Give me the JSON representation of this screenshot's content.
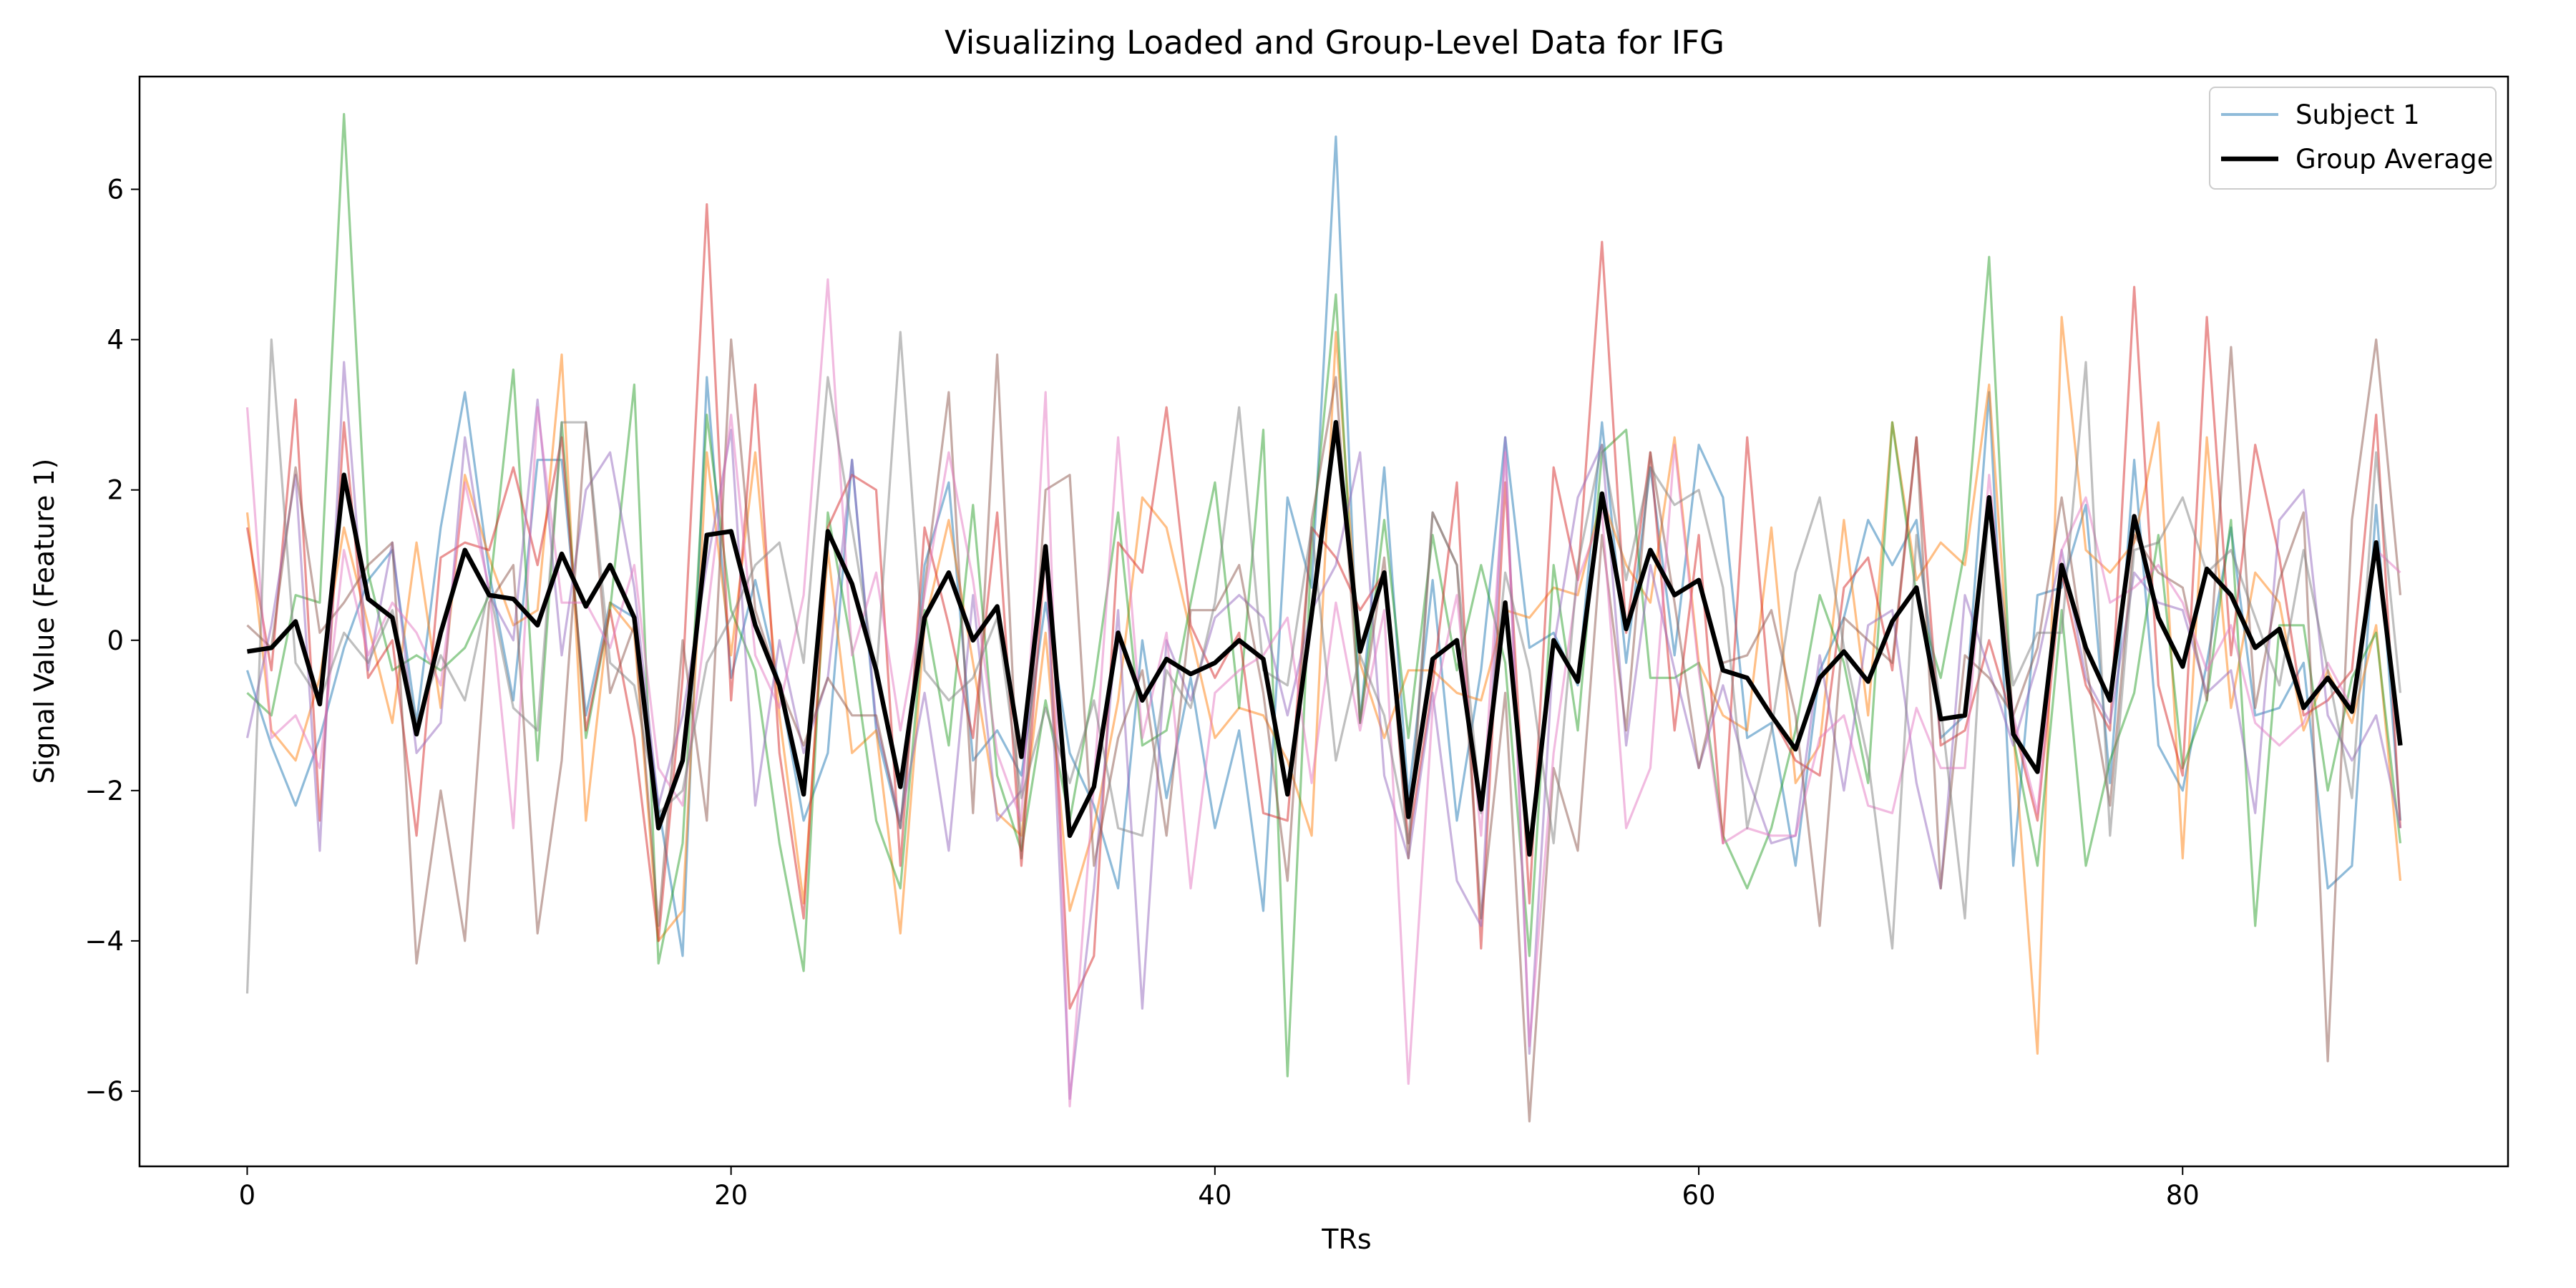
{
  "chart_data": {
    "type": "line",
    "title": "Visualizing Loaded and Group-Level Data for IFG",
    "xlabel": "TRs",
    "ylabel": "Signal Value (Feature 1)",
    "xlim": [
      -4.45,
      93.45
    ],
    "ylim": [
      -7.0,
      7.5
    ],
    "xticks": [
      0,
      20,
      40,
      60,
      80
    ],
    "yticks": [
      -6,
      -4,
      -2,
      0,
      2,
      4,
      6
    ],
    "xtick_labels": [
      "0",
      "20",
      "40",
      "60",
      "80"
    ],
    "ytick_labels": [
      "−6",
      "−4",
      "−2",
      "0",
      "2",
      "4",
      "6"
    ],
    "legend": {
      "placement": "top-right",
      "entries": [
        {
          "label": "Subject 1",
          "color": "#1f77b4",
          "alpha": 0.5
        },
        {
          "label": "Group Average",
          "color": "#000000",
          "alpha": 1.0
        }
      ]
    },
    "x": [
      0,
      1,
      2,
      3,
      4,
      5,
      6,
      7,
      8,
      9,
      10,
      11,
      12,
      13,
      14,
      15,
      16,
      17,
      18,
      19,
      20,
      21,
      22,
      23,
      24,
      25,
      26,
      27,
      28,
      29,
      30,
      31,
      32,
      33,
      34,
      35,
      36,
      37,
      38,
      39,
      40,
      41,
      42,
      43,
      44,
      45,
      46,
      47,
      48,
      49,
      50,
      51,
      52,
      53,
      54,
      55,
      56,
      57,
      58,
      59,
      60,
      61,
      62,
      63,
      64,
      65,
      66,
      67,
      68,
      69,
      70,
      71,
      72,
      73,
      74,
      75,
      76,
      77,
      78,
      79,
      80,
      81,
      82,
      83,
      84,
      85,
      86,
      87,
      88,
      89
    ],
    "series": [
      {
        "name": "Subject 1",
        "color": "#1f77b4",
        "alpha": 0.5,
        "width": 3.2,
        "values": [
          -0.4,
          -1.4,
          -2.2,
          -1.3,
          -0.1,
          0.8,
          1.2,
          -1.1,
          1.5,
          3.3,
          0.9,
          -0.8,
          2.4,
          2.4,
          -1.0,
          0.5,
          0.3,
          -2.2,
          -4.2,
          3.5,
          -0.5,
          0.8,
          -0.6,
          -2.4,
          -1.5,
          2.4,
          -1.2,
          -2.5,
          1.0,
          2.1,
          -1.6,
          -1.2,
          -1.8,
          0.5,
          -1.5,
          -2.2,
          -3.3,
          0.0,
          -2.1,
          -0.5,
          -2.5,
          -1.2,
          -3.6,
          1.9,
          0.7,
          6.7,
          -1.1,
          2.3,
          -2.1,
          0.8,
          -2.4,
          -0.4,
          2.7,
          -0.1,
          0.1,
          -0.6,
          2.9,
          -0.3,
          2.3,
          -0.2,
          2.6,
          1.9,
          -1.3,
          -1.1,
          -3.0,
          -0.4,
          0.3,
          1.6,
          1.0,
          1.6,
          -1.3,
          -1.0,
          3.3,
          -3.0,
          0.6,
          0.7,
          1.8,
          -1.9,
          2.4,
          -1.4,
          -2.0,
          -0.3,
          1.5,
          -1.0,
          -0.9,
          -0.3,
          -3.3,
          -3.0,
          1.8,
          -2.4
        ]
      },
      {
        "color": "#ff7f0e",
        "alpha": 0.5,
        "width": 3.2,
        "values": [
          1.7,
          -1.2,
          -1.6,
          -0.5,
          1.5,
          0.2,
          -1.1,
          1.3,
          -0.9,
          2.2,
          1.1,
          0.2,
          0.4,
          3.8,
          -2.4,
          0.5,
          0.1,
          -4.0,
          -3.6,
          2.5,
          -0.2,
          2.5,
          -1.0,
          -3.5,
          1.2,
          -1.5,
          -1.2,
          -3.9,
          0.2,
          1.6,
          -0.3,
          -2.3,
          -2.6,
          0.1,
          -3.6,
          -2.5,
          -0.8,
          1.9,
          1.5,
          0.1,
          -1.3,
          -0.9,
          -1.0,
          -1.6,
          -2.6,
          4.1,
          -0.3,
          -1.3,
          -0.4,
          -0.4,
          -0.7,
          -0.8,
          0.4,
          0.3,
          0.7,
          0.6,
          1.9,
          1.0,
          0.5,
          2.7,
          -0.3,
          -1.0,
          -1.2,
          1.5,
          -1.9,
          -1.4,
          1.6,
          -1.0,
          2.9,
          0.8,
          1.3,
          1.0,
          3.4,
          -1.2,
          -5.5,
          4.3,
          1.2,
          0.9,
          1.3,
          2.9,
          -2.9,
          2.7,
          -0.9,
          0.9,
          0.5,
          -1.2,
          -0.4,
          -1.1,
          0.2,
          -3.2
        ]
      },
      {
        "color": "#2ca02c",
        "alpha": 0.5,
        "width": 3.2,
        "values": [
          -0.7,
          -1.0,
          0.6,
          0.5,
          7.0,
          0.9,
          -0.4,
          -0.2,
          -0.4,
          -0.1,
          0.6,
          3.6,
          -1.6,
          2.9,
          -1.3,
          0.4,
          3.4,
          -4.3,
          -2.7,
          3.0,
          0.4,
          -0.4,
          -2.7,
          -4.4,
          1.7,
          -0.1,
          -2.4,
          -3.3,
          0.4,
          -1.4,
          1.8,
          -1.8,
          -2.8,
          -0.8,
          -2.4,
          -0.6,
          1.7,
          -1.4,
          -1.2,
          0.5,
          2.1,
          -0.9,
          2.8,
          -5.8,
          1.3,
          4.6,
          -1.1,
          1.6,
          -1.3,
          1.4,
          -0.4,
          1.0,
          -0.3,
          -4.2,
          1.0,
          -1.2,
          2.5,
          2.8,
          -0.5,
          -0.5,
          -0.3,
          -2.6,
          -3.3,
          -2.5,
          -1.2,
          0.6,
          -0.3,
          -1.9,
          2.9,
          0.6,
          -0.5,
          1.2,
          5.1,
          -1.3,
          -3.0,
          0.4,
          -3.0,
          -1.6,
          -0.7,
          1.4,
          -1.7,
          -0.8,
          1.6,
          -3.8,
          0.2,
          0.2,
          -2.0,
          -0.5,
          0.1,
          -2.7
        ]
      },
      {
        "color": "#d62728",
        "alpha": 0.5,
        "width": 3.2,
        "values": [
          1.5,
          -0.4,
          3.2,
          -2.4,
          2.9,
          -0.5,
          0.0,
          -2.6,
          1.1,
          1.3,
          1.2,
          2.3,
          1.0,
          2.7,
          -1.2,
          0.4,
          -1.3,
          -4.0,
          -0.5,
          5.8,
          -0.8,
          3.4,
          -1.5,
          -3.7,
          1.5,
          2.2,
          2.0,
          -3.0,
          1.5,
          0.2,
          -1.3,
          1.7,
          -3.0,
          1.2,
          -4.9,
          -4.2,
          1.3,
          0.9,
          3.1,
          0.2,
          -0.5,
          0.1,
          -2.3,
          -2.4,
          1.5,
          1.1,
          0.4,
          0.9,
          -2.7,
          -0.6,
          2.1,
          -4.1,
          2.1,
          -3.5,
          2.3,
          0.8,
          5.3,
          0.1,
          2.5,
          -1.2,
          1.4,
          -2.7,
          2.7,
          -1.0,
          -1.6,
          -1.8,
          0.7,
          1.1,
          -0.4,
          2.7,
          -1.4,
          -1.2,
          0.0,
          -1.1,
          -2.4,
          0.9,
          -0.6,
          -1.2,
          4.7,
          -0.6,
          -1.8,
          4.3,
          -0.2,
          2.6,
          1.1,
          -1.0,
          -0.8,
          -0.4,
          3.0,
          -2.5
        ]
      },
      {
        "color": "#9467bd",
        "alpha": 0.5,
        "width": 3.2,
        "values": [
          -1.3,
          0.2,
          2.2,
          -2.8,
          3.7,
          -0.4,
          1.3,
          -1.5,
          -1.1,
          2.7,
          0.6,
          0.0,
          3.2,
          -0.2,
          2.0,
          2.5,
          0.7,
          -2.2,
          -1.0,
          1.0,
          2.8,
          -2.2,
          0.0,
          -1.5,
          -0.5,
          2.4,
          -1.1,
          -2.4,
          -0.7,
          -2.8,
          0.6,
          -2.4,
          -2.0,
          1.2,
          -6.1,
          -3.3,
          0.4,
          -4.9,
          0.0,
          -0.8,
          0.3,
          0.6,
          0.3,
          -1.0,
          0.4,
          1.0,
          2.5,
          -1.8,
          -2.9,
          -0.7,
          -3.2,
          -3.8,
          2.7,
          -5.5,
          -0.1,
          1.9,
          2.6,
          -1.4,
          1.0,
          -0.4,
          -1.7,
          -0.6,
          -1.8,
          -2.7,
          -2.6,
          -0.2,
          -2.0,
          0.2,
          0.4,
          -1.9,
          -3.3,
          0.6,
          -0.4,
          -1.4,
          -0.3,
          1.2,
          -0.5,
          -1.1,
          0.9,
          0.5,
          0.4,
          -0.7,
          -0.4,
          -2.3,
          1.6,
          2.0,
          -1.0,
          -1.6,
          -1.0,
          -2.5
        ]
      },
      {
        "color": "#8c564b",
        "alpha": 0.5,
        "width": 3.2,
        "values": [
          0.2,
          -0.1,
          2.3,
          0.1,
          0.5,
          1.0,
          1.3,
          -4.3,
          -2.0,
          -4.0,
          0.5,
          1.0,
          -3.9,
          -1.6,
          2.9,
          -0.7,
          0.2,
          -3.8,
          0.0,
          -2.4,
          4.0,
          0.4,
          -0.6,
          -1.4,
          -0.5,
          -1.0,
          -1.0,
          -2.5,
          0.7,
          3.3,
          -2.3,
          3.8,
          -2.9,
          2.0,
          2.2,
          -3.0,
          -1.3,
          -0.4,
          -2.6,
          0.4,
          0.4,
          1.0,
          -0.7,
          -3.2,
          1.6,
          3.5,
          -1.1,
          1.1,
          -2.9,
          1.7,
          1.0,
          -3.7,
          -0.7,
          -6.4,
          -1.7,
          -2.8,
          1.4,
          -1.2,
          2.5,
          0.5,
          -1.7,
          -0.3,
          -0.2,
          0.4,
          -1.0,
          -3.8,
          0.3,
          0.0,
          -0.3,
          2.7,
          -3.3,
          -0.2,
          -0.5,
          -1.0,
          -0.1,
          1.9,
          -0.3,
          -2.2,
          1.4,
          0.9,
          0.7,
          -0.8,
          3.9,
          -0.9,
          0.8,
          1.7,
          -5.6,
          1.6,
          4.0,
          0.6
        ]
      },
      {
        "color": "#e377c2",
        "alpha": 0.5,
        "width": 3.2,
        "values": [
          3.1,
          -1.3,
          -1.0,
          -1.7,
          1.2,
          -0.2,
          0.5,
          0.1,
          -0.6,
          2.1,
          0.7,
          -2.5,
          3.1,
          0.5,
          0.5,
          -0.1,
          1.0,
          -1.7,
          -2.2,
          0.3,
          3.0,
          -0.2,
          -0.9,
          0.6,
          4.8,
          -0.2,
          0.9,
          -1.2,
          0.6,
          2.5,
          0.8,
          -1.5,
          -2.4,
          3.3,
          -6.2,
          -1.9,
          2.7,
          -1.3,
          0.1,
          -3.3,
          -0.7,
          -0.4,
          -0.2,
          0.3,
          -1.9,
          0.5,
          -1.2,
          0.4,
          -5.9,
          -0.9,
          0.6,
          -2.6,
          2.5,
          -5.4,
          -1.5,
          0.8,
          1.7,
          -2.5,
          -1.7,
          2.6,
          -0.4,
          -2.7,
          -2.5,
          -2.6,
          -2.6,
          -1.3,
          -1.0,
          -2.2,
          -2.3,
          -0.9,
          -1.7,
          -1.7,
          2.2,
          -1.0,
          -2.3,
          1.2,
          1.9,
          0.5,
          0.7,
          1.0,
          0.5,
          -0.4,
          0.2,
          -1.1,
          -1.4,
          -1.1,
          -0.3,
          -0.9,
          1.2,
          0.9
        ]
      },
      {
        "color": "#7f7f7f",
        "alpha": 0.5,
        "width": 3.2,
        "values": [
          -4.7,
          4.0,
          -0.3,
          -0.8,
          0.1,
          -0.3,
          0.4,
          -1.1,
          -0.2,
          -0.8,
          0.7,
          -0.9,
          -1.2,
          2.9,
          2.9,
          -0.3,
          -0.6,
          -2.3,
          -2.0,
          -0.3,
          0.3,
          1.0,
          1.3,
          -0.3,
          3.5,
          1.5,
          -0.5,
          4.1,
          -0.4,
          -0.8,
          -0.5,
          0.3,
          -2.1,
          -0.9,
          -1.9,
          -0.8,
          -2.5,
          -2.6,
          -0.4,
          -0.9,
          0.5,
          3.1,
          -0.4,
          -0.6,
          1.5,
          -1.6,
          -0.2,
          -1.0,
          -2.7,
          1.7,
          1.0,
          -2.3,
          0.9,
          -0.4,
          -2.7,
          1.0,
          2.6,
          0.8,
          2.3,
          1.8,
          2.0,
          0.7,
          -2.5,
          -1.2,
          0.9,
          1.9,
          -0.1,
          -1.6,
          -4.1,
          1.4,
          -0.9,
          -3.7,
          1.9,
          -0.6,
          0.1,
          0.1,
          3.7,
          -2.6,
          1.2,
          1.3,
          1.9,
          0.9,
          1.2,
          0.3,
          -0.6,
          1.2,
          -0.4,
          -2.1,
          2.5,
          -0.7
        ]
      },
      {
        "name": "Group Average",
        "color": "#000000",
        "alpha": 1.0,
        "width": 6.4,
        "values": [
          -0.15,
          -0.1,
          0.25,
          -0.85,
          2.2,
          0.55,
          0.3,
          -1.25,
          0.1,
          1.2,
          0.6,
          0.55,
          0.2,
          1.15,
          0.45,
          1.0,
          0.3,
          -2.5,
          -1.6,
          1.4,
          1.45,
          0.2,
          -0.6,
          -2.05,
          1.45,
          0.75,
          -0.4,
          -1.95,
          0.3,
          0.9,
          0.0,
          0.45,
          -1.55,
          1.25,
          -2.6,
          -1.95,
          0.1,
          -0.8,
          -0.25,
          -0.45,
          -0.3,
          0.0,
          -0.25,
          -2.05,
          0.35,
          2.9,
          -0.15,
          0.9,
          -2.35,
          -0.25,
          0.0,
          -2.25,
          0.5,
          -2.85,
          0.0,
          -0.55,
          1.95,
          0.15,
          1.2,
          0.6,
          0.8,
          -0.4,
          -0.5,
          -1.0,
          -1.45,
          -0.5,
          -0.15,
          -0.55,
          0.25,
          0.7,
          -1.05,
          -1.0,
          1.9,
          -1.25,
          -1.75,
          1.0,
          -0.1,
          -0.8,
          1.65,
          0.3,
          -0.35,
          0.95,
          0.6,
          -0.1,
          0.15,
          -0.9,
          -0.5,
          -0.95,
          1.3,
          -1.4
        ]
      }
    ]
  }
}
